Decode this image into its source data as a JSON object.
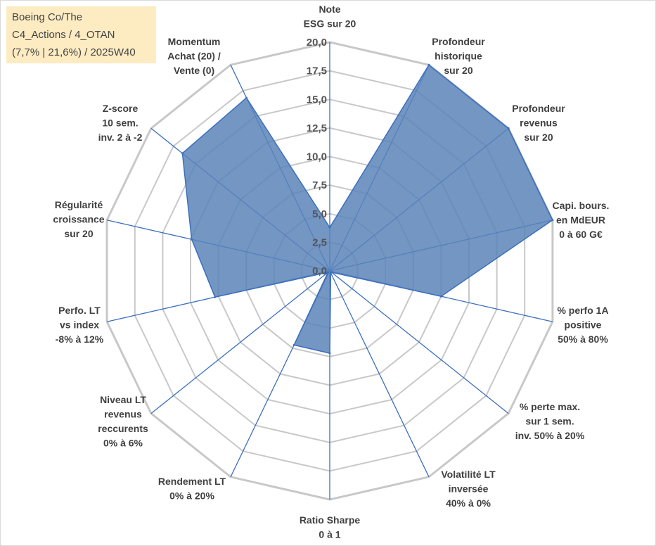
{
  "title": {
    "lines": [
      "Boeing Co/The",
      "C4_Actions / 4_OTAN",
      "(7,7% | 21,6%) / 2025W40"
    ]
  },
  "colors": {
    "fill": "#5b84b8",
    "stroke": "#3c6fbf",
    "grid": "#c8c8c8",
    "title_bg": "#fdebc2"
  },
  "chart_data": {
    "type": "radar",
    "rmin": 0,
    "rmax": 20,
    "rings": 8,
    "tick_labels": [
      "0,0",
      "2,5",
      "5,0",
      "7,5",
      "10,0",
      "12,5",
      "15,0",
      "17,5",
      "20,0"
    ],
    "axes": [
      {
        "label": [
          "Note",
          "ESG sur 20"
        ],
        "value": 3.8
      },
      {
        "label": [
          "Profondeur",
          "historique",
          "sur 20"
        ],
        "value": 20
      },
      {
        "label": [
          "Profondeur",
          "revenus",
          "sur 20"
        ],
        "value": 20
      },
      {
        "label": [
          "Capi. bours.",
          "en MdEUR",
          "0 à 60 G€"
        ],
        "value": 20
      },
      {
        "label": [
          "% perfo 1A",
          "positive",
          "50% à 80%"
        ],
        "value": 10
      },
      {
        "label": [
          "% perte max.",
          "sur 1 sem.",
          "inv. 50% à 20%"
        ],
        "value": 0.2
      },
      {
        "label": [
          "Volatilité LT",
          "inversée",
          "40% à 0%"
        ],
        "value": 0.2
      },
      {
        "label": [
          "Ratio Sharpe",
          "0 à 1"
        ],
        "value": 7.2
      },
      {
        "label": [
          "Rendement LT",
          "0% à 20%"
        ],
        "value": 7.2
      },
      {
        "label": [
          "Niveau LT",
          "revenus",
          "reccurents",
          "0% à 6%"
        ],
        "value": 0.2
      },
      {
        "label": [
          "Perfo. LT",
          "vs index",
          "-8% à 12%"
        ],
        "value": 10.3
      },
      {
        "label": [
          "Régularité",
          "croissance",
          "sur 20"
        ],
        "value": 12.4
      },
      {
        "label": [
          "Z-score",
          "10 sem.",
          "inv. 2 à -2"
        ],
        "value": 16.5
      },
      {
        "label": [
          "Momentum",
          "Achat (20) /",
          "Vente (0)"
        ],
        "value": 16.8
      }
    ]
  }
}
